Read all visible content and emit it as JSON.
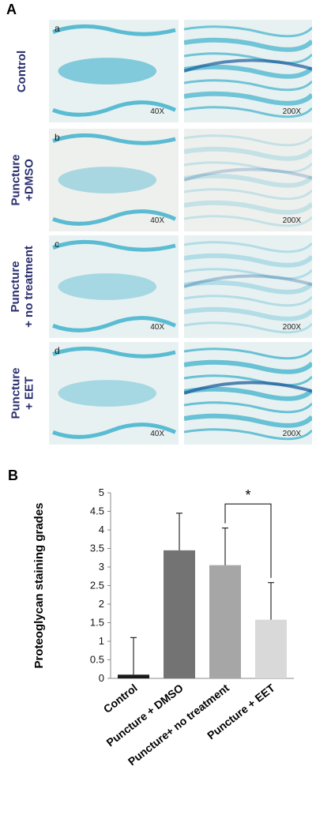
{
  "panel_a": {
    "letter": "A",
    "rows": [
      {
        "label_lines": [
          "Control"
        ],
        "sub": "a",
        "mag_low": "40X",
        "mag_high": "200X"
      },
      {
        "label_lines": [
          "Puncture",
          "+DMSO"
        ],
        "sub": "b",
        "mag_low": "40X",
        "mag_high": "200X"
      },
      {
        "label_lines": [
          "Puncture",
          "+ no treatment"
        ],
        "sub": "c",
        "mag_low": "40X",
        "mag_high": "200X"
      },
      {
        "label_lines": [
          "Puncture",
          "+ EET"
        ],
        "sub": "d",
        "mag_low": "40X",
        "mag_high": "200X"
      }
    ],
    "stain_color": "#29a9c8"
  },
  "panel_b": {
    "letter": "B"
  },
  "chart_data": {
    "type": "bar",
    "categories": [
      "Control",
      "Puncture + DMSO",
      "Puncture+ no treatment",
      "Puncture + EET"
    ],
    "values": [
      0.1,
      3.45,
      3.05,
      1.58
    ],
    "errors": [
      1.0,
      1.0,
      1.0,
      1.0
    ],
    "bar_colors": [
      "#1a1a1a",
      "#737373",
      "#a6a6a6",
      "#d9d9d9"
    ],
    "ylabel": "Proteoglycan staining grades",
    "ylim": [
      0,
      5
    ],
    "yticks": [
      "0",
      "0.5",
      "1",
      "1.5",
      "2",
      "2.5",
      "3",
      "3.5",
      "4",
      "4.5",
      "5"
    ],
    "significance": {
      "from": 2,
      "to": 3,
      "label": "*"
    },
    "grid": false
  }
}
